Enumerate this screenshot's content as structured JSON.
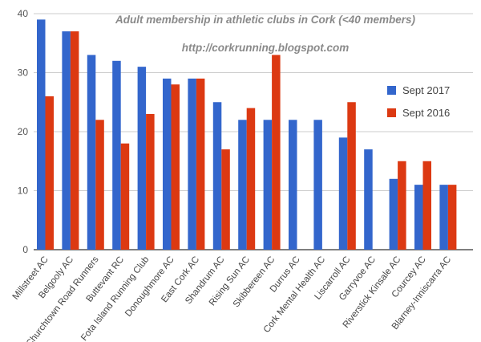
{
  "chart_data": {
    "type": "bar",
    "title": "Adult membership in athletic clubs in Cork (<40 members)",
    "subtitle": "http://corkrunning.blogspot.com",
    "xlabel": "",
    "ylabel": "",
    "ylim": [
      0,
      40
    ],
    "yticks": [
      "0",
      "10",
      "20",
      "30",
      "40"
    ],
    "grid": true,
    "legend_position": "right",
    "categories": [
      "Millstreet AC",
      "Belgooly AC",
      "Churchtown Road Runners",
      "Buttevant RC",
      "Fota Island Running Club",
      "Donoughmore AC",
      "East Cork AC",
      "Shandrum AC",
      "Rising Sun AC",
      "Skibbereen AC",
      "Durrus AC",
      "Cork Mental Health AC",
      "Liscarroll AC",
      "Garryvoe AC",
      "Riverstick Kinsale AC",
      "Courcey AC",
      "Blarney-Inniscarra AC"
    ],
    "series": [
      {
        "name": "Sept 2017",
        "color": "#3366cc",
        "values": [
          39,
          37,
          33,
          32,
          31,
          29,
          29,
          25,
          22,
          22,
          22,
          22,
          19,
          17,
          12,
          11,
          11
        ]
      },
      {
        "name": "Sept 2016",
        "color": "#dc3912",
        "values": [
          26,
          37,
          22,
          18,
          23,
          28,
          29,
          17,
          24,
          33,
          null,
          null,
          25,
          null,
          15,
          15,
          11
        ]
      }
    ]
  }
}
